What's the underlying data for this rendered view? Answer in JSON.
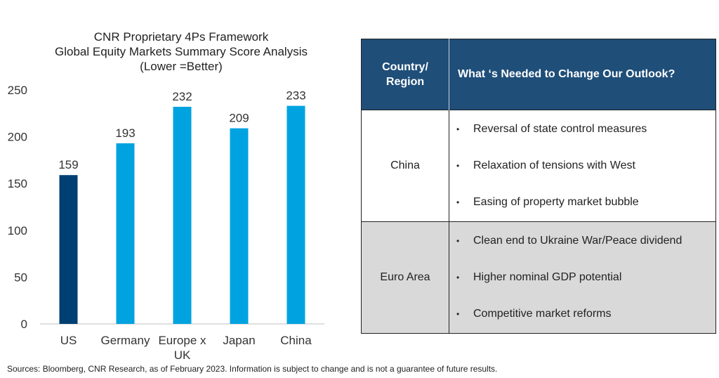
{
  "chart_data": {
    "type": "bar",
    "title_lines": [
      "CNR Proprietary 4Ps Framework",
      "Global Equity Markets Summary Score Analysis",
      "(Lower =Better)"
    ],
    "categories": [
      [
        "US"
      ],
      [
        "Germany"
      ],
      [
        "Europe x",
        "UK"
      ],
      [
        "Japan"
      ],
      [
        "China"
      ]
    ],
    "values": [
      159,
      193,
      232,
      209,
      233
    ],
    "data_labels": [
      "159",
      "193",
      "232",
      "209",
      "233"
    ],
    "y_ticks": [
      "0",
      "50",
      "100",
      "150",
      "200",
      "250"
    ],
    "ylim": [
      0,
      250
    ],
    "grid": false,
    "legend": "none",
    "colors": [
      "#003f72",
      "#00a3e0",
      "#00a3e0",
      "#00a3e0",
      "#00a3e0"
    ]
  },
  "table": {
    "header_region": [
      "Country/",
      "Region"
    ],
    "header_needs": "What ‘s Needed to Change Our Outlook?",
    "rows": [
      {
        "region": "China",
        "needs": [
          "Reversal of state control measures",
          "Relaxation of tensions with West",
          "Easing of property market bubble"
        ]
      },
      {
        "region": "Euro Area",
        "needs": [
          "Clean end to Ukraine War/Peace dividend",
          "Higher nominal GDP potential",
          "Competitive market reforms"
        ]
      }
    ],
    "bullet": "•",
    "colors": {
      "header": "#1f4e79",
      "row_alt": "#d9d9d9"
    }
  },
  "footer": {
    "sources": "Sources: Bloomberg, CNR Research, as of February 2023.  Information is subject to change and is not a guarantee of future results."
  }
}
